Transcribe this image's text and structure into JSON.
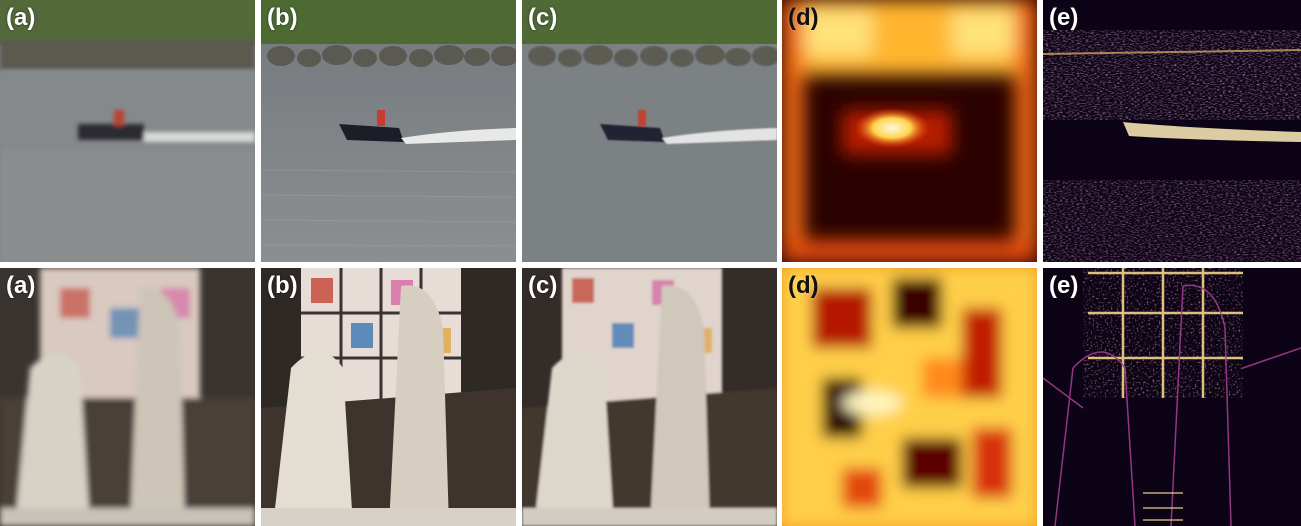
{
  "rows": [
    {
      "name": "boat",
      "panels": [
        {
          "id": "a",
          "label": "(a)",
          "kind": "lowres-photo"
        },
        {
          "id": "b",
          "label": "(b)",
          "kind": "highres-photo"
        },
        {
          "id": "c",
          "label": "(c)",
          "kind": "reconstructed-photo"
        },
        {
          "id": "d",
          "label": "(d)",
          "kind": "heatmap"
        },
        {
          "id": "e",
          "label": "(e)",
          "kind": "error-map"
        }
      ]
    },
    {
      "name": "statues",
      "panels": [
        {
          "id": "a",
          "label": "(a)",
          "kind": "lowres-photo"
        },
        {
          "id": "b",
          "label": "(b)",
          "kind": "highres-photo"
        },
        {
          "id": "c",
          "label": "(c)",
          "kind": "reconstructed-photo"
        },
        {
          "id": "d",
          "label": "(d)",
          "kind": "heatmap"
        },
        {
          "id": "e",
          "label": "(e)",
          "kind": "error-map"
        }
      ]
    }
  ],
  "colors": {
    "background": "#ffffff",
    "water": "#7d8286",
    "grass": "#4f6a36",
    "rocks": "#5c5a50",
    "heat_hot": "#fff6c8",
    "heat_mid": "#e8400c",
    "heat_cold": "#1a0000",
    "error_bright": "#f7d36b",
    "error_mid": "#a23c8f",
    "error_dark": "#0d0316"
  }
}
